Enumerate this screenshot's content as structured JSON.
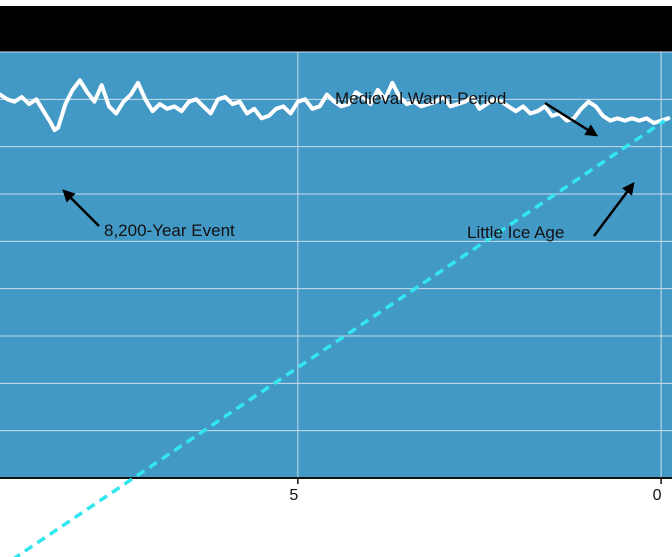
{
  "chart_data": {
    "type": "line",
    "title": "",
    "xlabel": "",
    "ylabel": "",
    "x_ticks": [
      {
        "value": 5,
        "label": "5"
      },
      {
        "value": 0,
        "label": "0"
      }
    ],
    "x_range": [
      9.1,
      -0.15
    ],
    "y_range": [
      1,
      10
    ],
    "grid": true,
    "series": [
      {
        "kind": "temperature-proxy",
        "color": "#ffffff",
        "x": [
          9.1,
          9.0,
          8.9,
          8.8,
          8.7,
          8.6,
          8.5,
          8.4,
          8.35,
          8.3,
          8.2,
          8.1,
          8.0,
          7.9,
          7.8,
          7.7,
          7.6,
          7.5,
          7.4,
          7.3,
          7.2,
          7.1,
          7.0,
          6.9,
          6.8,
          6.7,
          6.6,
          6.5,
          6.4,
          6.3,
          6.2,
          6.1,
          6.0,
          5.9,
          5.8,
          5.7,
          5.6,
          5.5,
          5.4,
          5.3,
          5.2,
          5.1,
          5.0,
          4.9,
          4.8,
          4.7,
          4.6,
          4.5,
          4.4,
          4.3,
          4.2,
          4.1,
          4.0,
          3.9,
          3.8,
          3.7,
          3.6,
          3.5,
          3.4,
          3.3,
          3.2,
          3.1,
          3.0,
          2.9,
          2.8,
          2.7,
          2.6,
          2.5,
          2.4,
          2.3,
          2.2,
          2.1,
          2.0,
          1.9,
          1.8,
          1.7,
          1.6,
          1.5,
          1.4,
          1.3,
          1.2,
          1.1,
          1.0,
          0.9,
          0.8,
          0.7,
          0.6,
          0.5,
          0.4,
          0.3,
          0.2,
          0.1,
          0.0,
          -0.1
        ],
        "y": [
          9.1,
          9.0,
          8.95,
          9.05,
          8.9,
          9.0,
          8.75,
          8.5,
          8.35,
          8.4,
          8.9,
          9.2,
          9.4,
          9.15,
          8.95,
          9.3,
          8.85,
          8.7,
          8.95,
          9.1,
          9.35,
          9.0,
          8.75,
          8.9,
          8.8,
          8.85,
          8.75,
          8.95,
          9.0,
          8.85,
          8.7,
          9.0,
          9.05,
          8.9,
          8.95,
          8.7,
          8.8,
          8.6,
          8.65,
          8.8,
          8.85,
          8.7,
          8.95,
          9.0,
          8.8,
          8.85,
          9.1,
          8.95,
          8.85,
          8.9,
          9.15,
          9.05,
          8.9,
          9.2,
          9.0,
          9.35,
          9.05,
          8.9,
          8.95,
          8.85,
          8.9,
          8.95,
          9.05,
          8.85,
          8.9,
          8.95,
          9.05,
          8.8,
          8.9,
          9.0,
          8.95,
          8.85,
          8.75,
          8.85,
          8.7,
          8.75,
          8.85,
          8.65,
          8.7,
          8.55,
          8.6,
          8.8,
          8.95,
          8.85,
          8.65,
          8.55,
          8.6,
          8.55,
          8.6,
          8.55,
          8.6,
          8.5,
          8.55,
          8.6
        ]
      },
      {
        "kind": "trend",
        "color": "#33e6f0",
        "x": [
          9.1,
          -0.05
        ],
        "y": [
          -0.9,
          8.55
        ]
      }
    ],
    "annotations": [
      {
        "label": "Medieval Warm Period",
        "x": 0.85,
        "y": 9.0
      },
      {
        "label": "8,200-Year Event",
        "x": 8.3,
        "y": 8.35
      },
      {
        "label": "Little Ice Age",
        "x": 0.35,
        "y": 8.55
      }
    ]
  },
  "style": {
    "header_color": "#000000",
    "plot_bg": "#4399c6",
    "grid_color": "#c8dde9",
    "axis_color": "#111111",
    "below_bg": "#ffffff"
  }
}
